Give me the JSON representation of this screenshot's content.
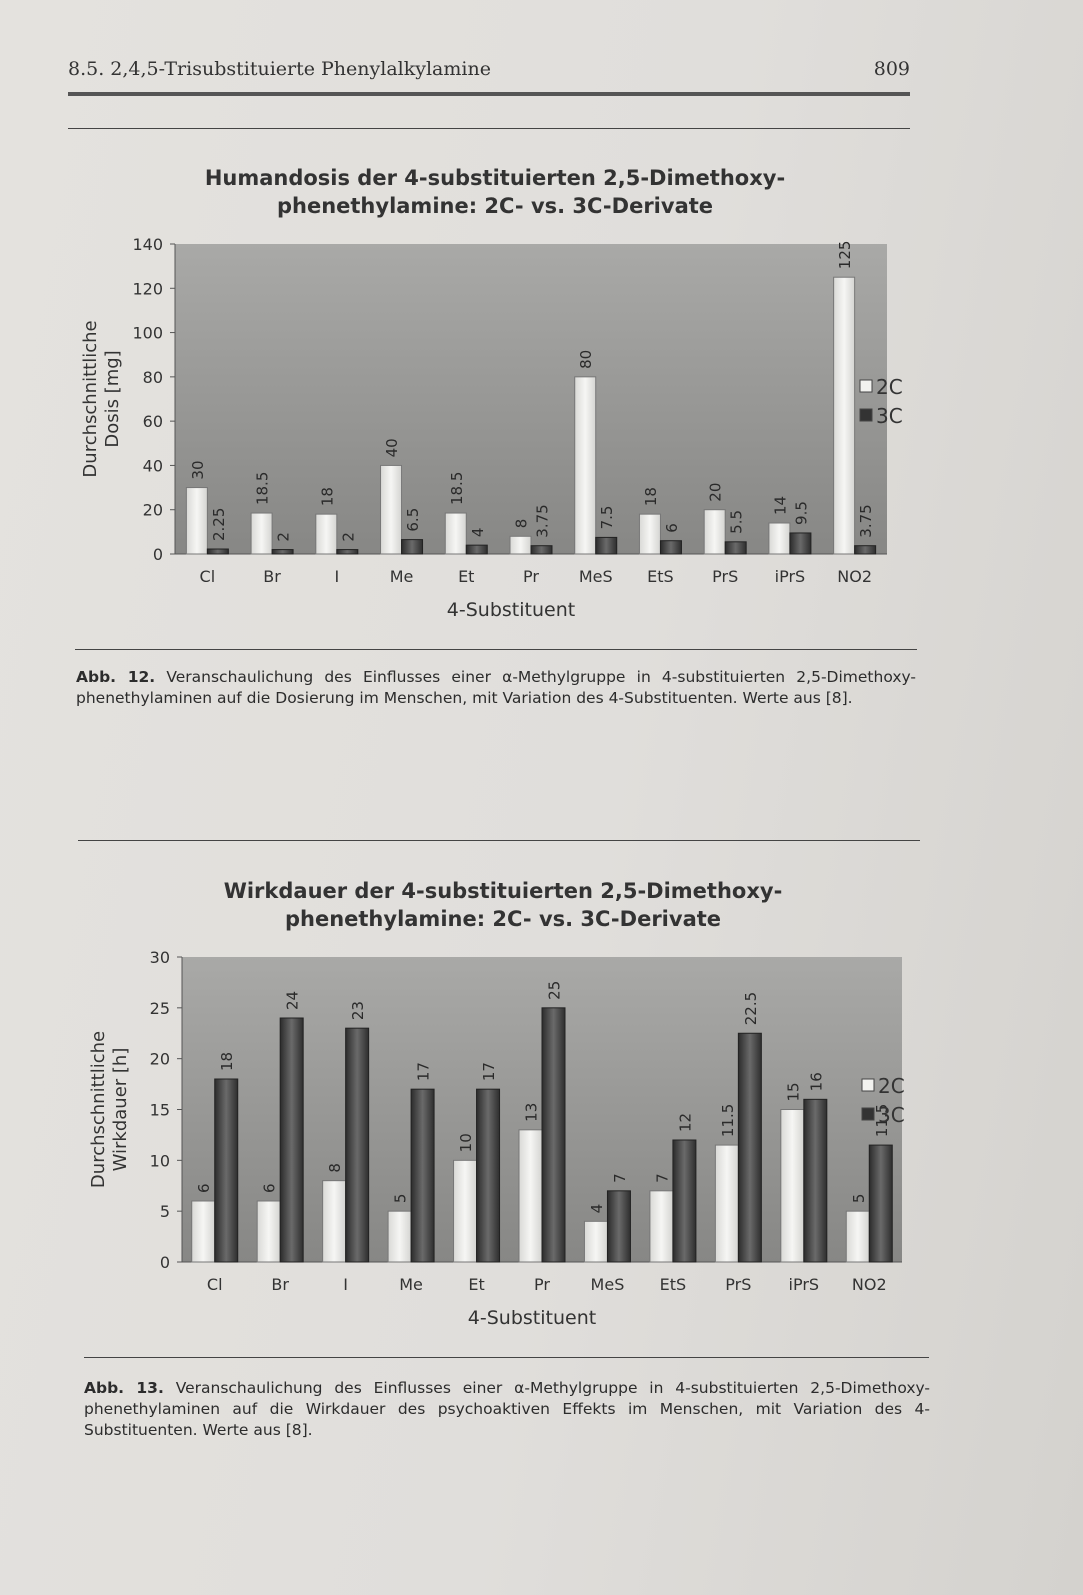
{
  "header": {
    "title": "8.5. 2,4,5-Trisubstituierte Phenylalkylamine",
    "page_number": "809"
  },
  "chart_data": [
    {
      "type": "bar",
      "title": "Humandosis der 4-substituierten 2,5-Dimethoxy-\nphenethylamine: 2C- vs. 3C-Derivate",
      "categories": [
        "Cl",
        "Br",
        "I",
        "Me",
        "Et",
        "Pr",
        "MeS",
        "EtS",
        "PrS",
        "iPrS",
        "NO2"
      ],
      "series": [
        {
          "name": "2C",
          "values": [
            30,
            18.5,
            18,
            40,
            18.5,
            8,
            80,
            18,
            20,
            14,
            125
          ],
          "labels": [
            "30",
            "18.5",
            "18",
            "40",
            "18.5",
            "8",
            "80",
            "18",
            "20",
            "14",
            "125"
          ],
          "color": "#efefec"
        },
        {
          "name": "3C",
          "values": [
            2.25,
            2,
            2,
            6.5,
            4,
            3.75,
            7.5,
            6,
            5.5,
            9.5,
            3.75
          ],
          "labels": [
            "2.25",
            "2",
            "2",
            "6.5",
            "4",
            "3.75",
            "7.5",
            "6",
            "5.5",
            "9.5",
            "3.75"
          ],
          "color": "#4a4a4a"
        }
      ],
      "xlabel": "4-Substituent",
      "ylabel": "Durchschnittliche\nDosis [mg]",
      "ylim": [
        0,
        140
      ],
      "yticks": [
        0,
        20,
        40,
        60,
        80,
        100,
        120,
        140
      ],
      "legend": "right",
      "grid": false
    },
    {
      "type": "bar",
      "title": "Wirkdauer der 4-substituierten 2,5-Dimethoxy-\nphenethylamine: 2C- vs. 3C-Derivate",
      "categories": [
        "Cl",
        "Br",
        "I",
        "Me",
        "Et",
        "Pr",
        "MeS",
        "EtS",
        "PrS",
        "iPrS",
        "NO2"
      ],
      "series": [
        {
          "name": "2C",
          "values": [
            6,
            6,
            8,
            5,
            10,
            13,
            4,
            7,
            11.5,
            15,
            5
          ],
          "labels": [
            "6",
            "6",
            "8",
            "5",
            "10",
            "13",
            "4",
            "7",
            "11.5",
            "15",
            "5"
          ],
          "color": "#efefec"
        },
        {
          "name": "3C",
          "values": [
            18,
            24,
            23,
            17,
            17,
            25,
            7,
            12,
            22.5,
            16,
            11.5
          ],
          "labels": [
            "18",
            "24",
            "23",
            "17",
            "17",
            "25",
            "7",
            "12",
            "22.5",
            "16",
            "11.5"
          ],
          "color": "#4a4a4a"
        }
      ],
      "xlabel": "4-Substituent",
      "ylabel": "Durchschnittliche\nWirkdauer [h]",
      "ylim": [
        0,
        30
      ],
      "yticks": [
        0,
        5,
        10,
        15,
        20,
        25,
        30
      ],
      "legend": "right",
      "grid": false
    }
  ],
  "captions": [
    {
      "label": "Abb. 12.",
      "text": "Veranschaulichung des Einflusses einer α-Methylgruppe in 4-substituierten 2,5-Dimethoxy-phenethylaminen auf die Dosierung im Menschen, mit Variation des 4-Substituenten. Werte aus [8]."
    },
    {
      "label": "Abb. 13.",
      "text": "Veranschaulichung des Einflusses einer α-Methylgruppe in 4-substituierten 2,5-Dimethoxy-phenethylaminen auf die Wirkdauer des psychoaktiven Effekts im Menschen, mit Variation des 4-Substituenten. Werte aus [8]."
    }
  ]
}
